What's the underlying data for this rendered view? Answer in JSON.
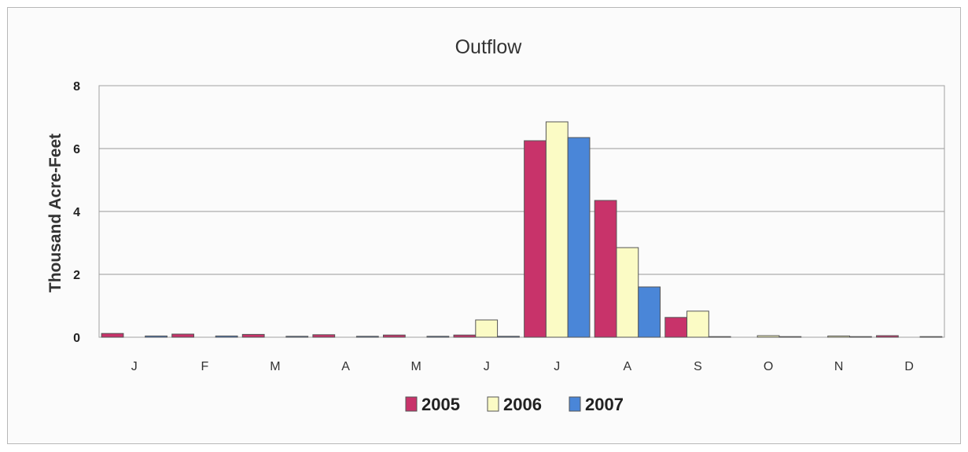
{
  "chart_data": {
    "type": "bar",
    "title": "Outflow",
    "xlabel": "",
    "ylabel": "Thousand Acre-Feet",
    "ylim": [
      0,
      8
    ],
    "yticks": [
      "0",
      "2",
      "4",
      "6",
      "8"
    ],
    "grid": true,
    "legend_position": "bottom",
    "categories": [
      "J",
      "F",
      "M",
      "A",
      "M",
      "J",
      "J",
      "A",
      "S",
      "O",
      "N",
      "D"
    ],
    "series": [
      {
        "name": "2005",
        "color": "#c8336a",
        "values": [
          0.12,
          0.1,
          0.09,
          0.08,
          0.07,
          0.07,
          6.25,
          4.35,
          0.63,
          0.0,
          0.0,
          0.05
        ]
      },
      {
        "name": "2006",
        "color": "#fbfbc5",
        "values": [
          0.0,
          0.0,
          0.0,
          0.0,
          0.0,
          0.55,
          6.85,
          2.85,
          0.83,
          0.05,
          0.04,
          0.0
        ]
      },
      {
        "name": "2007",
        "color": "#4a86d8",
        "values": [
          0.04,
          0.04,
          0.03,
          0.03,
          0.03,
          0.03,
          6.35,
          1.6,
          0.02,
          0.02,
          0.02,
          0.02
        ]
      }
    ]
  }
}
